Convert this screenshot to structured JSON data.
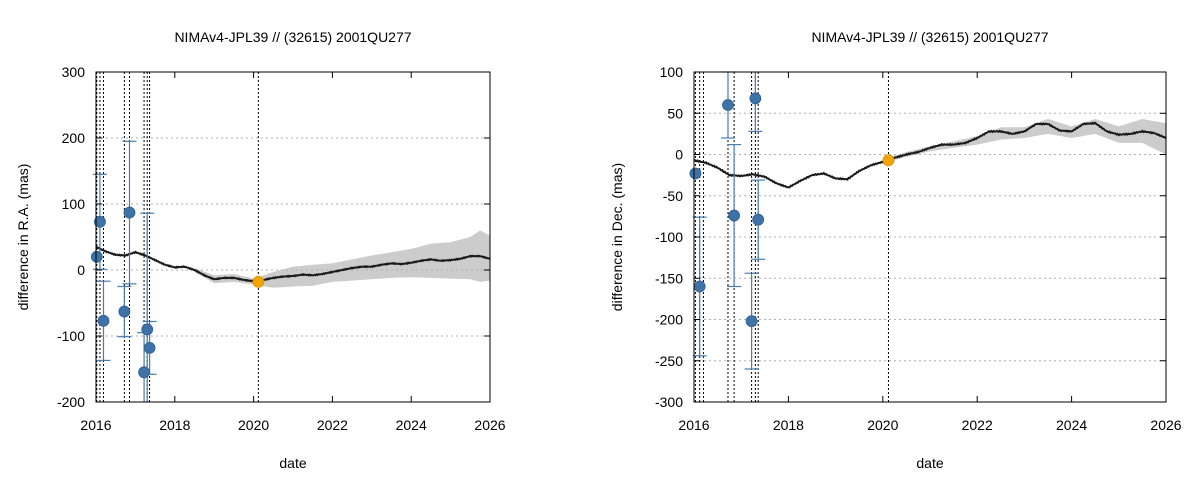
{
  "chart_data": [
    {
      "type": "scatter",
      "title": "NIMAv4-JPL39 // (32615) 2001QU277",
      "xlabel": "date",
      "ylabel": "difference in R.A. (mas)",
      "xlim": [
        2016,
        2026
      ],
      "ylim": [
        -200,
        300
      ],
      "xticks": [
        "2016",
        "2018",
        "2020",
        "2022",
        "2024",
        "2026"
      ],
      "yticks": [
        "-200",
        "-100",
        "0",
        "100",
        "200",
        "300"
      ],
      "ytick_values": [
        -200,
        -100,
        0,
        100,
        200,
        300
      ],
      "ygrid": [
        -100,
        0,
        100,
        200
      ],
      "vlines": [
        2016.02,
        2016.1,
        2016.19,
        2016.72,
        2016.85,
        2017.22,
        2017.3,
        2017.36,
        2020.12
      ],
      "orbit_curve": {
        "name": "NIMAv4-JPL39 model",
        "x": [
          2016.0,
          2016.25,
          2016.5,
          2016.75,
          2017.0,
          2017.25,
          2017.5,
          2017.75,
          2018.0,
          2018.25,
          2018.5,
          2018.75,
          2019.0,
          2019.25,
          2019.5,
          2019.75,
          2020.0,
          2020.12,
          2020.25,
          2020.5,
          2020.75,
          2021.0,
          2021.25,
          2021.5,
          2021.75,
          2022.0,
          2022.25,
          2022.5,
          2022.75,
          2023.0,
          2023.25,
          2023.5,
          2023.75,
          2024.0,
          2024.25,
          2024.5,
          2024.75,
          2025.0,
          2025.25,
          2025.5,
          2025.75,
          2026.0
        ],
        "y": [
          35,
          28,
          23,
          22,
          27,
          22,
          15,
          8,
          4,
          5,
          0,
          -8,
          -14,
          -12,
          -12,
          -15,
          -17,
          -18,
          -15,
          -12,
          -10,
          -9,
          -7,
          -8,
          -6,
          -3,
          0,
          3,
          5,
          5,
          8,
          10,
          9,
          11,
          14,
          16,
          14,
          15,
          17,
          21,
          21,
          17
        ]
      },
      "uncertainty_band": {
        "x": [
          2018.5,
          2019.0,
          2019.5,
          2020.0,
          2020.5,
          2021.0,
          2021.5,
          2022.0,
          2022.5,
          2023.0,
          2023.5,
          2024.0,
          2024.5,
          2025.0,
          2025.5,
          2025.75,
          2026.0
        ],
        "upper": [
          3,
          -8,
          -6,
          -13,
          -3,
          5,
          8,
          10,
          16,
          22,
          27,
          32,
          40,
          42,
          50,
          60,
          52
        ],
        "lower": [
          -3,
          -20,
          -18,
          -22,
          -27,
          -25,
          -24,
          -18,
          -16,
          -14,
          -12,
          -11,
          -12,
          -13,
          -14,
          -18,
          -16
        ]
      },
      "observations": [
        {
          "x": 2016.02,
          "y": 20,
          "err": 0
        },
        {
          "x": 2016.1,
          "y": 73,
          "err": 72
        },
        {
          "x": 2016.19,
          "y": -77,
          "err": 60
        },
        {
          "x": 2016.72,
          "y": -63,
          "err": 38
        },
        {
          "x": 2016.85,
          "y": 87,
          "err": 108
        },
        {
          "x": 2017.22,
          "y": -155,
          "err": 60
        },
        {
          "x": 2017.3,
          "y": -90,
          "err": 176
        },
        {
          "x": 2017.36,
          "y": -118,
          "err": 40
        }
      ],
      "reference_point": {
        "x": 2020.12,
        "y": -18
      }
    },
    {
      "type": "scatter",
      "title": "NIMAv4-JPL39 // (32615) 2001QU277",
      "xlabel": "date",
      "ylabel": "difference in Dec. (mas)",
      "xlim": [
        2016,
        2026
      ],
      "ylim": [
        -300,
        100
      ],
      "xticks": [
        "2016",
        "2018",
        "2020",
        "2022",
        "2024",
        "2026"
      ],
      "yticks": [
        "-300",
        "-250",
        "-200",
        "-150",
        "-100",
        "-50",
        "0",
        "50",
        "100"
      ],
      "ytick_values": [
        -300,
        -250,
        -200,
        -150,
        -100,
        -50,
        0,
        50,
        100
      ],
      "ygrid": [
        -250,
        -200,
        -150,
        -100,
        -50,
        0,
        50
      ],
      "vlines": [
        2016.03,
        2016.12,
        2016.2,
        2016.72,
        2016.85,
        2017.22,
        2017.3,
        2017.36,
        2020.12
      ],
      "orbit_curve": {
        "name": "NIMAv4-JPL39 model",
        "x": [
          2016.0,
          2016.25,
          2016.5,
          2016.75,
          2017.0,
          2017.25,
          2017.5,
          2017.75,
          2018.0,
          2018.25,
          2018.5,
          2018.75,
          2019.0,
          2019.25,
          2019.5,
          2019.75,
          2020.0,
          2020.12,
          2020.25,
          2020.5,
          2020.75,
          2021.0,
          2021.25,
          2021.5,
          2021.75,
          2022.0,
          2022.25,
          2022.5,
          2022.75,
          2023.0,
          2023.25,
          2023.5,
          2023.75,
          2024.0,
          2024.25,
          2024.5,
          2024.75,
          2025.0,
          2025.25,
          2025.5,
          2025.75,
          2026.0
        ],
        "y": [
          -7,
          -10,
          -16,
          -25,
          -26,
          -24,
          -27,
          -35,
          -40,
          -32,
          -25,
          -23,
          -29,
          -30,
          -20,
          -13,
          -9,
          -7,
          -4,
          0,
          3,
          8,
          12,
          12,
          14,
          20,
          28,
          28,
          25,
          28,
          37,
          37,
          29,
          28,
          37,
          38,
          28,
          24,
          25,
          28,
          26,
          20
        ]
      },
      "uncertainty_band": {
        "x": [
          2020.0,
          2020.5,
          2021.0,
          2021.5,
          2022.0,
          2022.5,
          2023.0,
          2023.5,
          2024.0,
          2024.5,
          2025.0,
          2025.5,
          2026.0
        ],
        "upper": [
          -6,
          3,
          10,
          16,
          22,
          33,
          33,
          43,
          34,
          43,
          34,
          43,
          38
        ],
        "lower": [
          -10,
          -3,
          4,
          8,
          12,
          18,
          20,
          25,
          20,
          25,
          14,
          14,
          0
        ]
      },
      "observations": [
        {
          "x": 2016.03,
          "y": -23,
          "err": 0
        },
        {
          "x": 2016.12,
          "y": -160,
          "err": 84
        },
        {
          "x": 2016.72,
          "y": 60,
          "err": 40
        },
        {
          "x": 2016.85,
          "y": -74,
          "err": 86
        },
        {
          "x": 2017.22,
          "y": -202,
          "err": 58
        },
        {
          "x": 2017.3,
          "y": 68,
          "err": 40
        },
        {
          "x": 2017.36,
          "y": -79,
          "err": 48
        }
      ],
      "reference_point": {
        "x": 2020.12,
        "y": -7
      }
    }
  ]
}
